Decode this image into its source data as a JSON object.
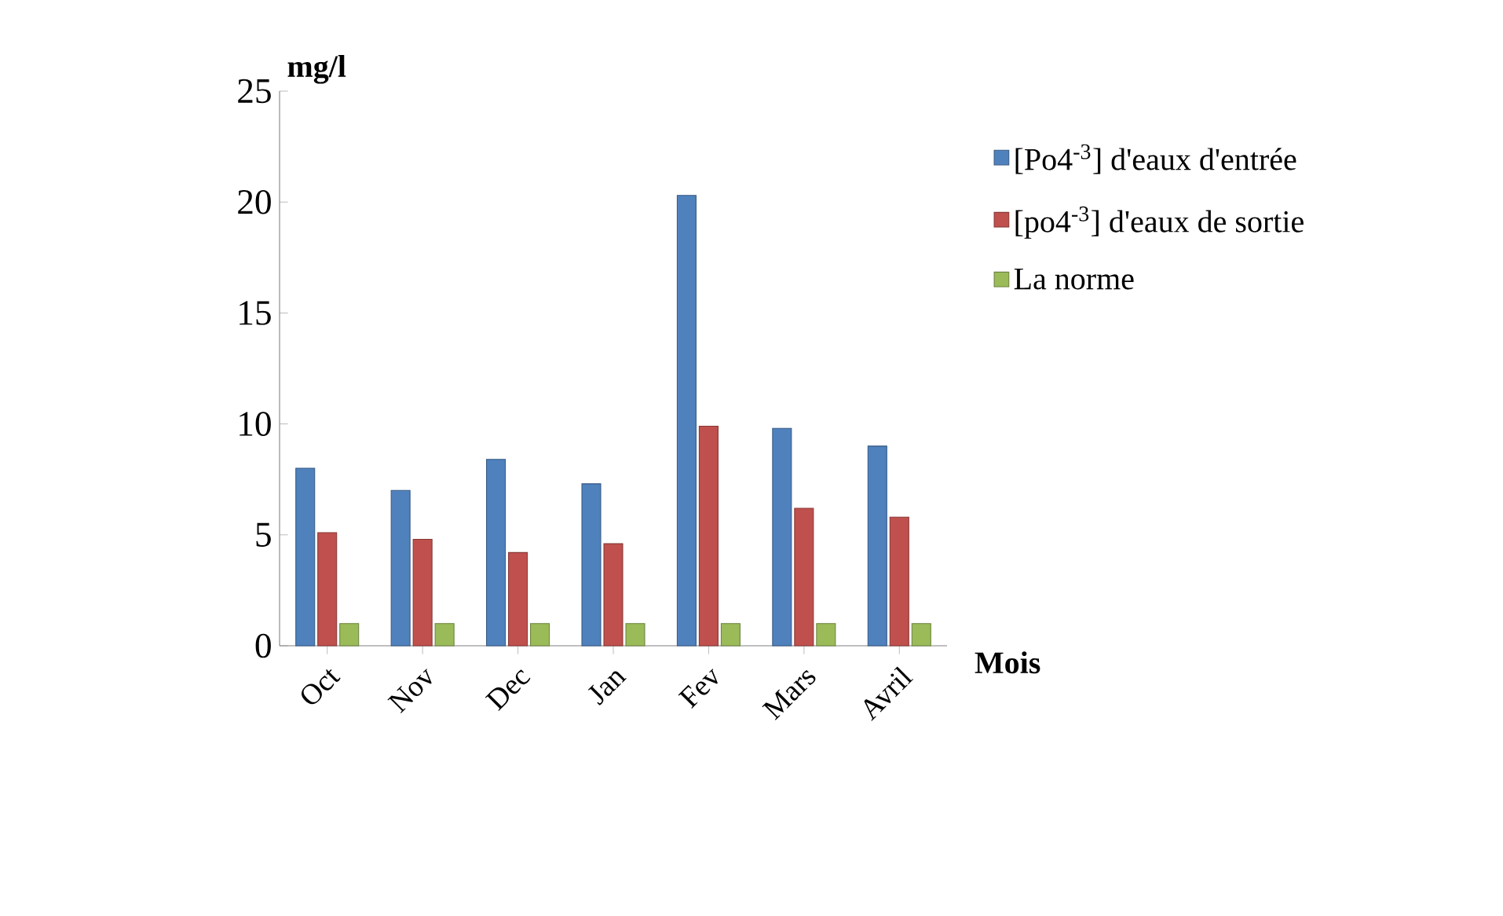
{
  "chart_data": {
    "type": "bar",
    "xlabel": "Mois",
    "ylabel": "mg/l",
    "categories": [
      "Oct",
      "Nov",
      "Dec",
      "Jan",
      "Fev",
      "Mars",
      "Avril"
    ],
    "series": [
      {
        "name": "[Po4$^{-3}$] d'eaux d'entrée",
        "color": "#4f81bd",
        "values": [
          8.0,
          7.0,
          8.4,
          7.3,
          20.3,
          9.8,
          9.0
        ]
      },
      {
        "name": "[po4$^{-3}$] d'eaux de sortie",
        "color": "#c0504d",
        "values": [
          5.1,
          4.8,
          4.2,
          4.6,
          9.9,
          6.2,
          5.8
        ]
      },
      {
        "name": "La norme",
        "color": "#9bbb59",
        "values": [
          1,
          1,
          1,
          1,
          1,
          1,
          1
        ]
      }
    ],
    "ylim": [
      0,
      25
    ],
    "yticks": [
      0,
      5,
      10,
      15,
      20,
      25
    ],
    "grid": false,
    "legend": "right"
  }
}
